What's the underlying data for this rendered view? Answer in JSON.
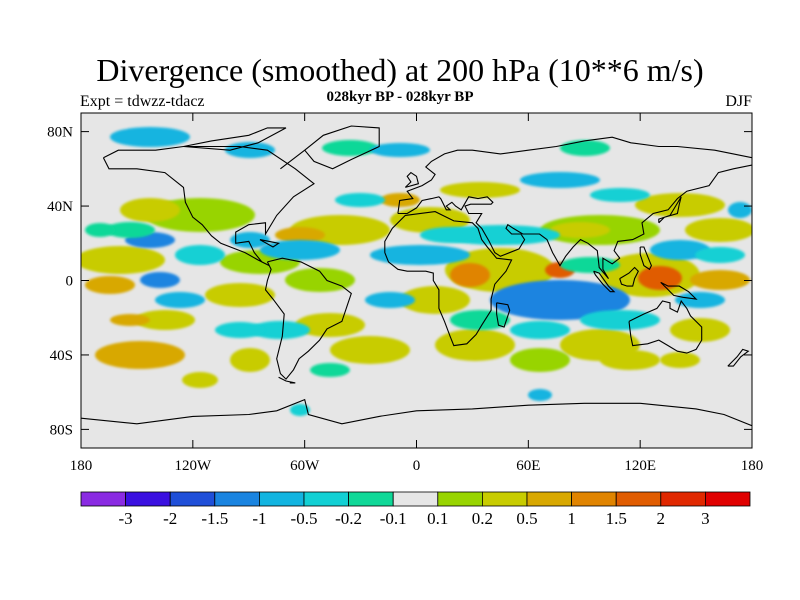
{
  "title": "Divergence (smoothed) at 200 hPa (10**6 m/s)",
  "subtitle": "028kyr BP - 028kyr BP",
  "left_label": "Expt = tdwzz-tdacz",
  "right_label": "DJF",
  "axes": {
    "y_ticks": [
      "80N",
      "40N",
      "0",
      "40S",
      "80S"
    ],
    "y_values": [
      80,
      40,
      0,
      -40,
      -80
    ],
    "x_ticks": [
      "180",
      "120W",
      "60W",
      "0",
      "60E",
      "120E",
      "180"
    ],
    "x_values": [
      -180,
      -120,
      -60,
      0,
      60,
      120,
      180
    ],
    "lon_range": [
      -180,
      180
    ],
    "lat_range": [
      -90,
      90
    ]
  },
  "colorbar": {
    "colors": [
      "#8a2be2",
      "#3a10e0",
      "#1f4fd8",
      "#1a84e0",
      "#12b4e0",
      "#12d0d4",
      "#10d898",
      "#e6e6e6",
      "#98d400",
      "#c8cc00",
      "#d8a800",
      "#e08400",
      "#e05c00",
      "#e02800",
      "#e00000"
    ],
    "labels": [
      "-3",
      "-2",
      "-1.5",
      "-1",
      "-0.5",
      "-0.2",
      "-0.1",
      "0.1",
      "0.2",
      "0.5",
      "1",
      "1.5",
      "2",
      "3"
    ]
  }
}
